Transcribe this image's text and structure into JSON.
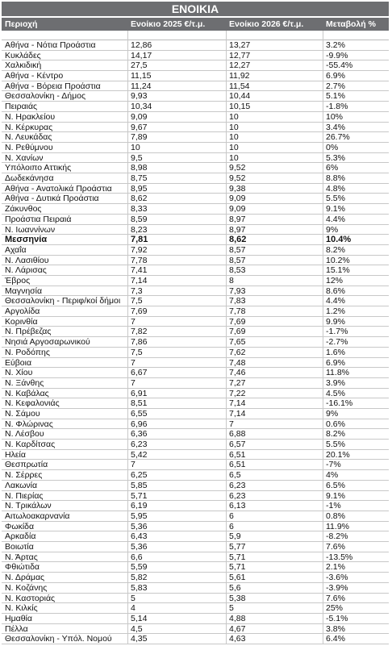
{
  "title": "ΕΝΟΙΚΙΑ",
  "table": {
    "columns": [
      "Περιοχή",
      "Ενοίκιο 2025 €/τ.μ.",
      "Ενοίκιο 2026 €/τ.μ.",
      "Μεταβολή %"
    ],
    "bold_rows": [
      19
    ],
    "rows": [
      [
        "Αθήνα - Νότια Προάστια",
        "12,86",
        "13,27",
        "3.2%"
      ],
      [
        "Κυκλάδες",
        "14,17",
        "12,77",
        "-9.9%"
      ],
      [
        "Χαλκιδική",
        "27,5",
        "12,27",
        "-55.4%"
      ],
      [
        "Αθήνα - Κέντρο",
        "11,15",
        "11,92",
        "6.9%"
      ],
      [
        "Αθήνα - Βόρεια Προάστια",
        "11,24",
        "11,54",
        "2.7%"
      ],
      [
        "Θεσσαλονίκη - Δήμος",
        "9,93",
        "10,44",
        "5.1%"
      ],
      [
        "Πειραιάς",
        "10,34",
        "10,15",
        "-1.8%"
      ],
      [
        "Ν. Ηρακλείου",
        "9,09",
        "10",
        "10%"
      ],
      [
        "Ν. Κέρκυρας",
        "9,67",
        "10",
        "3.4%"
      ],
      [
        "Ν. Λευκάδας",
        "7,89",
        "10",
        "26.7%"
      ],
      [
        "Ν. Ρεθύμνου",
        "10",
        "10",
        "0%"
      ],
      [
        "Ν. Χανίων",
        "9,5",
        "10",
        "5.3%"
      ],
      [
        "Υπόλοιπο Αττικής",
        "8,98",
        "9,52",
        "6%"
      ],
      [
        "Δωδεκάνησα",
        "8,75",
        "9,52",
        "8.8%"
      ],
      [
        "Αθήνα - Ανατολικά Προάστια",
        "8,95",
        "9,38",
        "4.8%"
      ],
      [
        "Αθήνα - Δυτικά Προάστια",
        "8,62",
        "9,09",
        "5.5%"
      ],
      [
        "Ζάκυνθος",
        "8,33",
        "9,09",
        "9.1%"
      ],
      [
        "Προάστια Πειραιά",
        "8,59",
        "8,97",
        "4.4%"
      ],
      [
        "Ν. Ιωαννίνων",
        "8,23",
        "8,97",
        "9%"
      ],
      [
        "Μεσσηνία",
        "7,81",
        "8,62",
        "10.4%"
      ],
      [
        "Αχαΐα",
        "7,92",
        "8,57",
        "8.2%"
      ],
      [
        "Ν. Λασιθίου",
        "7,78",
        "8,57",
        "10.2%"
      ],
      [
        "Ν. Λάρισας",
        "7,41",
        "8,53",
        "15.1%"
      ],
      [
        "Έβρος",
        "7,14",
        "8",
        "12%"
      ],
      [
        "Μαγνησία",
        "7,3",
        "7,93",
        "8.6%"
      ],
      [
        "Θεσσαλονίκη - Περιφ/κοί δήμοι",
        "7,5",
        "7,83",
        "4.4%"
      ],
      [
        "Αργολίδα",
        "7,69",
        "7,78",
        "1.2%"
      ],
      [
        "Κορινθία",
        "7",
        "7,69",
        "9.9%"
      ],
      [
        "Ν. Πρέβεζας",
        "7,82",
        "7,69",
        "-1.7%"
      ],
      [
        "Νησιά Αργοσαρωνικού",
        "7,86",
        "7,65",
        "-2.7%"
      ],
      [
        "Ν. Ροδόπης",
        "7,5",
        "7,62",
        "1.6%"
      ],
      [
        "Εύβοια",
        "7",
        "7,48",
        "6.9%"
      ],
      [
        "Ν. Χίου",
        "6,67",
        "7,46",
        "11.8%"
      ],
      [
        "Ν. Ξάνθης",
        "7",
        "7,27",
        "3.9%"
      ],
      [
        "Ν. Καβάλας",
        "6,91",
        "7,22",
        "4.5%"
      ],
      [
        "Ν. Κεφαλονιάς",
        "8,51",
        "7,14",
        "-16.1%"
      ],
      [
        "Ν. Σάμου",
        "6,55",
        "7,14",
        "9%"
      ],
      [
        "Ν. Φλώρινας",
        "6,96",
        "7",
        "0.6%"
      ],
      [
        "Ν. Λέσβου",
        "6,36",
        "6,88",
        "8.2%"
      ],
      [
        "Ν. Καρδίτσας",
        "6,23",
        "6,57",
        "5.5%"
      ],
      [
        "Ηλεία",
        "5,42",
        "6,51",
        "20.1%"
      ],
      [
        "Θεσπρωτία",
        "7",
        "6,51",
        "-7%"
      ],
      [
        "Ν. Σέρρες",
        "6,25",
        "6,5",
        "4%"
      ],
      [
        "Λακωνία",
        "5,85",
        "6,23",
        "6.5%"
      ],
      [
        "Ν. Πιερίας",
        "5,71",
        "6,23",
        "9.1%"
      ],
      [
        "Ν. Τρικάλων",
        "6,19",
        "6,13",
        "-1%"
      ],
      [
        "Αιτωλοακαρνανία",
        "5,95",
        "6",
        "0.8%"
      ],
      [
        "Φωκίδα",
        "5,36",
        "6",
        "11.9%"
      ],
      [
        "Αρκαδία",
        "6,43",
        "5,9",
        "-8.2%"
      ],
      [
        "Βοιωτία",
        "5,36",
        "5,77",
        "7.6%"
      ],
      [
        "Ν. Άρτας",
        "6,6",
        "5,71",
        "-13.5%"
      ],
      [
        "Φθιώτιδα",
        "5,59",
        "5,71",
        "2.1%"
      ],
      [
        "Ν. Δράμας",
        "5,82",
        "5,61",
        "-3.6%"
      ],
      [
        "Ν. Κοζάνης",
        "5,83",
        "5,6",
        "-3.9%"
      ],
      [
        "Ν. Καστοριάς",
        "5",
        "5,38",
        "7.6%"
      ],
      [
        "Ν. Κιλκίς",
        "4",
        "5",
        "25%"
      ],
      [
        "Ημαθία",
        "5,14",
        "4,88",
        "-5.1%"
      ],
      [
        "Πέλλα",
        "4,5",
        "4,67",
        "3.8%"
      ],
      [
        "Θεσσαλονίκη - Υπόλ. Νομού",
        "4,35",
        "4,63",
        "6.4%"
      ]
    ]
  }
}
